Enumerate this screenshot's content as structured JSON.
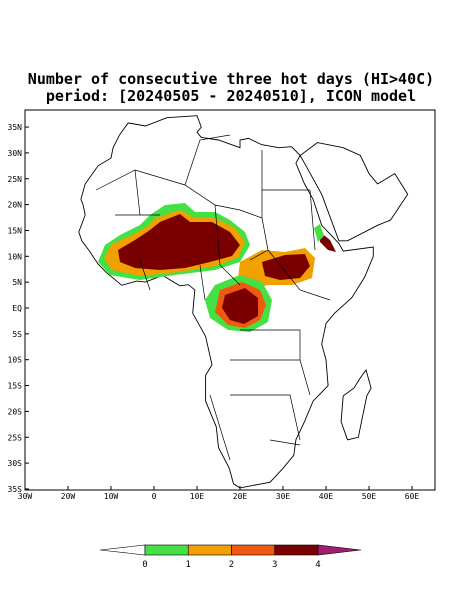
{
  "title": [
    "Number of consecutive three hot days (HI>40C)",
    "period: [20240505 - 20240510], ICON model"
  ],
  "lat_labels": [
    "35N",
    "30N",
    "25N",
    "20N",
    "15N",
    "10N",
    "5N",
    "EQ",
    "5S",
    "10S",
    "15S",
    "20S",
    "25S",
    "30S",
    "35S"
  ],
  "lon_labels": [
    "30W",
    "20W",
    "10W",
    "0",
    "10E",
    "20E",
    "30E",
    "40E",
    "50E",
    "60E"
  ],
  "colorbar": {
    "labels": [
      0,
      1,
      2,
      3,
      4
    ],
    "colors": [
      "#ffffff",
      "#44e044",
      "#f0a000",
      "#f05a10",
      "#7a0000",
      "#a01e6e"
    ]
  }
}
